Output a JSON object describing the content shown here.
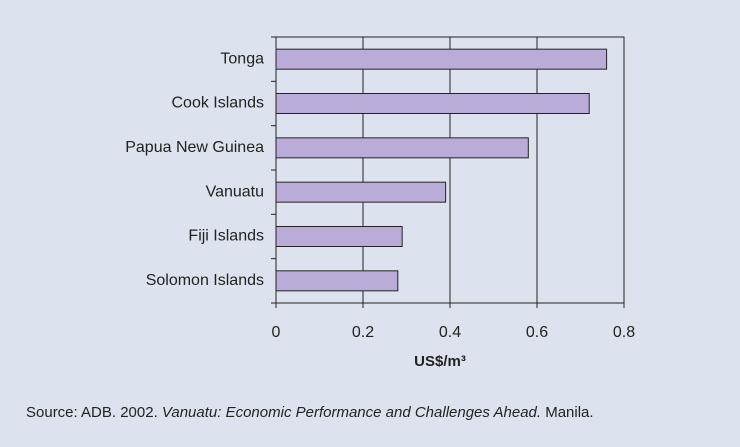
{
  "chart_data": {
    "type": "bar",
    "orientation": "horizontal",
    "categories": [
      "Tonga",
      "Cook Islands",
      "Papua New Guinea",
      "Vanuatu",
      "Fiji Islands",
      "Solomon Islands"
    ],
    "values": [
      0.76,
      0.72,
      0.58,
      0.39,
      0.29,
      0.28
    ],
    "color": "#b9acd8",
    "xlim": [
      0,
      0.8
    ],
    "xticks": [
      0,
      0.2,
      0.4,
      0.6,
      0.8
    ],
    "grid": true,
    "x_label": "US$/m³",
    "source": {
      "prefix": "Source: ADB. 2002. ",
      "title": "Vanuatu: Economic Performance and Challenges Ahead.",
      "suffix": " Manila."
    }
  }
}
